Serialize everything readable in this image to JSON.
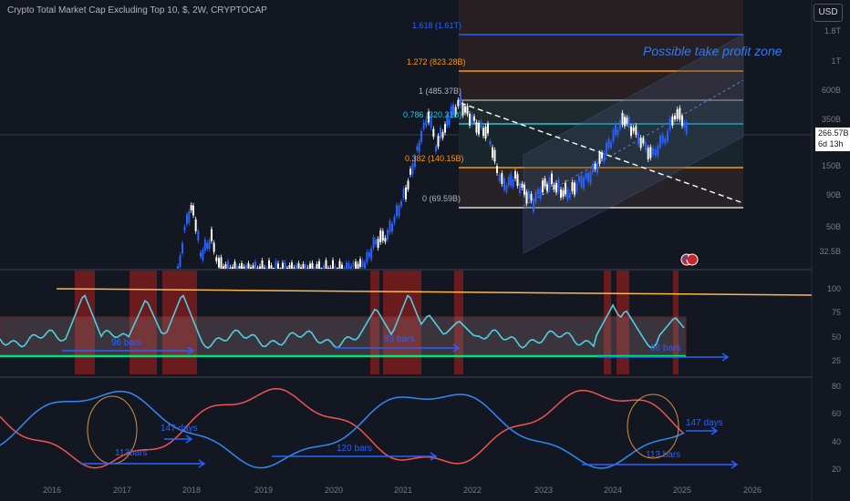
{
  "header": {
    "title": "Crypto Total Market Cap Excluding Top 10, $, 2W, CRYPTOCAP",
    "currency": "USD"
  },
  "price_axis": {
    "labels": [
      "1.8T",
      "1T",
      "600B",
      "350B",
      "150B",
      "90B",
      "50B",
      "32.5B"
    ],
    "current_price": "266.57B",
    "countdown": "6d 13h"
  },
  "fib_levels": [
    "1.618 (1.61T)",
    "1.272 (823.28B)",
    "1 (485.37B)",
    "0.786 (320.31B)",
    "0.382 (140.15B)",
    "0 (69.59B)"
  ],
  "annotations": {
    "take_profit": "Possible take profit zone",
    "rsi_bars_1": "96 bars",
    "rsi_bars_2": "93 bars",
    "rsi_bars_3": "96 bars",
    "osc_days_1": "147 days",
    "osc_bars_1": "113bars",
    "osc_bars_2": "120 bars",
    "osc_bars_3": "113 bars",
    "osc_days_2": "147 days"
  },
  "rsi_axis": [
    "100",
    "75",
    "50",
    "25"
  ],
  "osc_axis": [
    "80",
    "60",
    "40",
    "20"
  ],
  "time_axis": [
    "2016",
    "2017",
    "2018",
    "2019",
    "2020",
    "2021",
    "2022",
    "2023",
    "2024",
    "2025",
    "2026"
  ],
  "colors": {
    "background": "#131722",
    "bull_candle": "#2962ff",
    "bear_candle": "#ffffff",
    "fib_orange": "#ff9800",
    "fib_cyan": "#26c6da",
    "fib_blue": "#2962ff",
    "rsi_line": "#4dd0e1",
    "rsi_band": "#b71c1c",
    "osc_red": "#f05350",
    "osc_blue": "#2f8af5",
    "arrow_blue": "#2962ff"
  },
  "icons": [
    "flag-icon"
  ]
}
